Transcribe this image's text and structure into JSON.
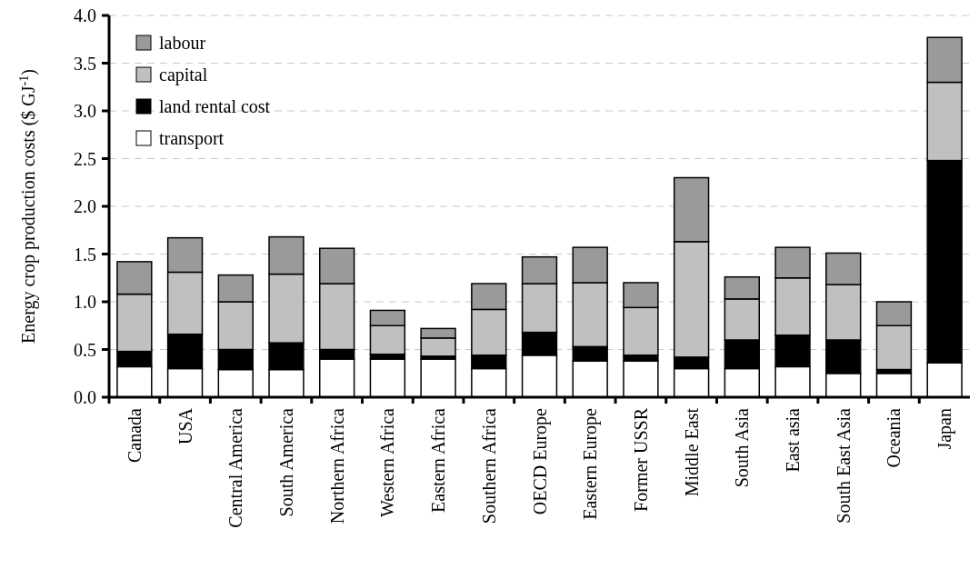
{
  "chart_data": {
    "type": "bar",
    "stacked": true,
    "ylabel": "Energy crop production costs ($ GJ$^{-1}$)",
    "categories": [
      "Canada",
      "USA",
      "Central America",
      "South America",
      "Northern Africa",
      "Western Africa",
      "Eastern Africa",
      "Southern Africa",
      "OECD Europe",
      "Eastern Europe",
      "Former USSR",
      "Middle East",
      "South Asia",
      "East asia",
      "South East Asia",
      "Oceania",
      "Japan"
    ],
    "series": [
      {
        "name": "transport",
        "color": "#ffffff",
        "values": [
          0.32,
          0.3,
          0.29,
          0.29,
          0.4,
          0.4,
          0.4,
          0.3,
          0.44,
          0.38,
          0.38,
          0.3,
          0.3,
          0.32,
          0.25,
          0.25,
          0.36
        ]
      },
      {
        "name": "land rental cost",
        "color": "#000000",
        "values": [
          0.16,
          0.36,
          0.21,
          0.28,
          0.1,
          0.05,
          0.03,
          0.14,
          0.24,
          0.15,
          0.06,
          0.12,
          0.3,
          0.33,
          0.35,
          0.04,
          2.12
        ]
      },
      {
        "name": "capital",
        "color": "#c0c0c0",
        "values": [
          0.6,
          0.65,
          0.5,
          0.72,
          0.69,
          0.3,
          0.19,
          0.48,
          0.51,
          0.67,
          0.5,
          1.21,
          0.43,
          0.6,
          0.58,
          0.46,
          0.82
        ]
      },
      {
        "name": "labour",
        "color": "#9a9a9a",
        "values": [
          0.34,
          0.36,
          0.28,
          0.39,
          0.37,
          0.16,
          0.1,
          0.27,
          0.28,
          0.37,
          0.26,
          0.67,
          0.23,
          0.32,
          0.33,
          0.25,
          0.47
        ]
      }
    ],
    "ylim": [
      0,
      4
    ],
    "yticks": [
      {
        "value": 0,
        "label": "0.0"
      },
      {
        "value": 0.5,
        "label": "0.5"
      },
      {
        "value": 1,
        "label": "1.0"
      },
      {
        "value": 1.5,
        "label": "1.5"
      },
      {
        "value": 2,
        "label": "2.0"
      },
      {
        "value": 2.5,
        "label": "2.5"
      },
      {
        "value": 3,
        "label": "3.0"
      },
      {
        "value": 3.5,
        "label": "3.5"
      },
      {
        "value": 4,
        "label": "4.0"
      }
    ],
    "grid": "y",
    "legend": "top left"
  }
}
